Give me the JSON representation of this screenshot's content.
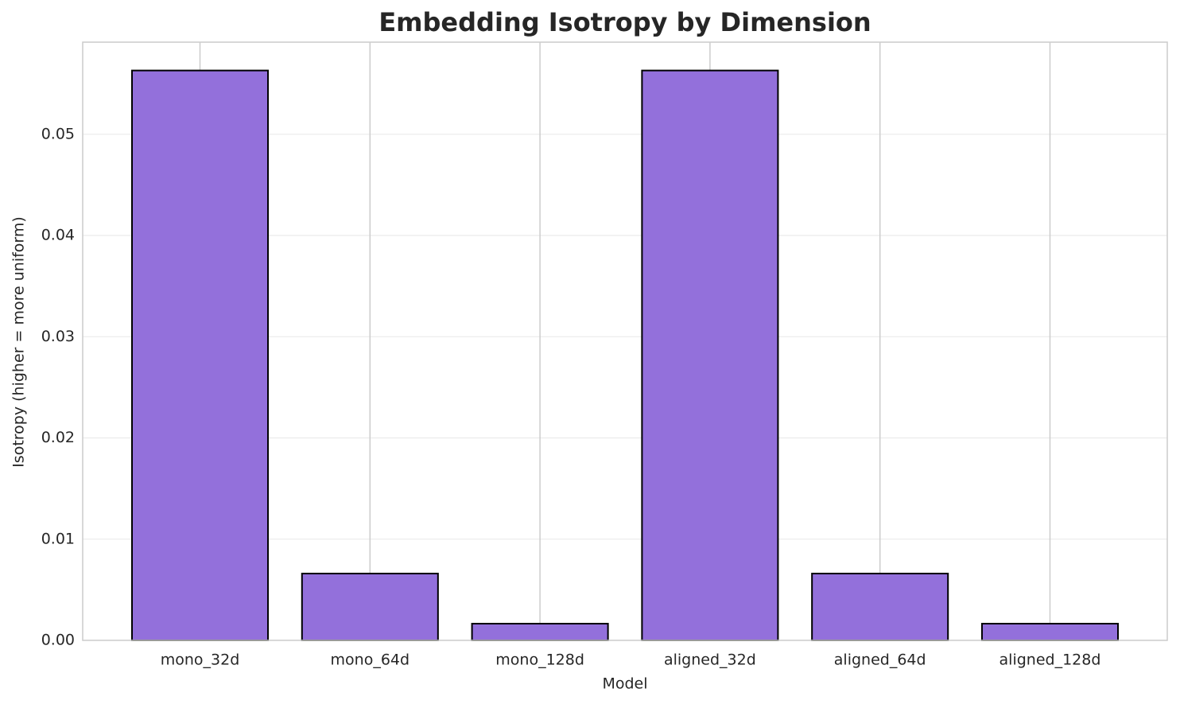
{
  "chart_data": {
    "type": "bar",
    "title": "Embedding Isotropy by Dimension",
    "x_label": "Model",
    "y_label": "Isotropy (higher = more uniform)",
    "categories": [
      "mono_32d",
      "mono_64d",
      "mono_128d",
      "aligned_32d",
      "aligned_64d",
      "aligned_128d"
    ],
    "values": [
      0.0563,
      0.0066,
      0.00165,
      0.0563,
      0.0066,
      0.00165
    ],
    "color": "#9370db",
    "edgecolor": "#000000",
    "ylim": [
      0,
      0.0591
    ],
    "yticks": [
      {
        "value": 0,
        "label": "0.00"
      },
      0.01,
      0.02,
      0.03,
      0.04,
      0.05
    ],
    "grid": true
  }
}
